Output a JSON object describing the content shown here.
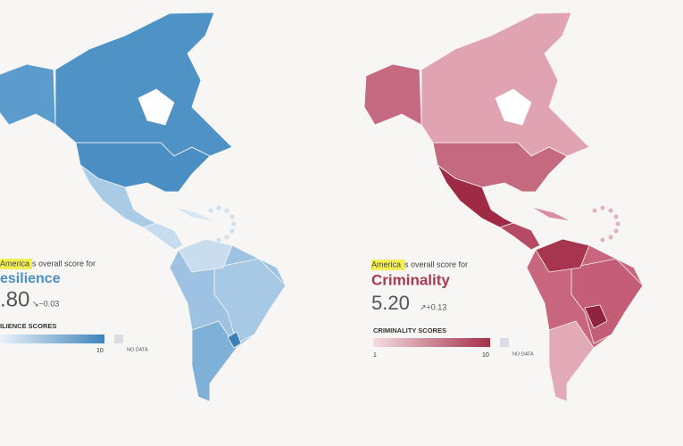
{
  "panels": [
    {
      "region_label": "America",
      "intro_suffix": "s overall score for",
      "metric": "esilience",
      "score": ".80",
      "change": "↘−0.03",
      "legend": {
        "title": "ILIENCE SCORES",
        "max": "10",
        "no_data": "NO DATA"
      }
    },
    {
      "region_label": "America",
      "intro_suffix": "s overall score for",
      "metric": "Criminality",
      "score": "5.20",
      "change": "↗+0.13",
      "legend": {
        "title": "CRIMINALITY SCORES",
        "min": "1",
        "max": "10",
        "no_data": "NO DATA"
      }
    }
  ]
}
